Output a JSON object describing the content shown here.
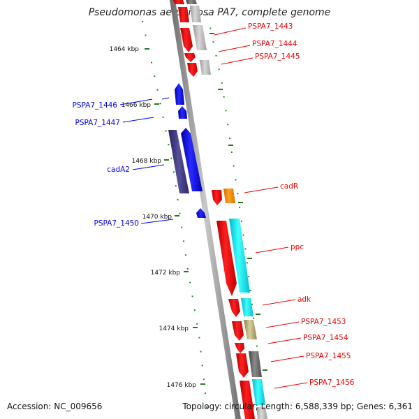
{
  "title": "Pseudomonas aeruginosa PA7, complete genome",
  "footer": {
    "accession": "Accession: NC_009656",
    "summary": "Topology: circular; Length: 6,588,339 bp; Genes: 6,361"
  },
  "ticks": [
    "1464 kbp",
    "1466 kbp",
    "1468 kbp",
    "1470 kbp",
    "1472 kbp",
    "1474 kbp",
    "1476 kbp"
  ],
  "genes_reverse": [
    {
      "name": "PSPA7_1446",
      "color": "#0000ee"
    },
    {
      "name": "PSPA7_1447",
      "color": "#0000ee"
    },
    {
      "name": "cadA2",
      "color": "#0000ee"
    },
    {
      "name": "PSPA7_1450",
      "color": "#0000ee"
    }
  ],
  "genes_forward": [
    {
      "name": "PSPA7_1443",
      "color": "#ee0000"
    },
    {
      "name": "PSPA7_1444",
      "color": "#ee0000"
    },
    {
      "name": "PSPA7_1445",
      "color": "#ee0000"
    },
    {
      "name": "cadR",
      "color": "#ee0000"
    },
    {
      "name": "ppc",
      "color": "#ee0000"
    },
    {
      "name": "adk",
      "color": "#ee0000"
    },
    {
      "name": "PSPA7_1453",
      "color": "#ee0000"
    },
    {
      "name": "PSPA7_1454",
      "color": "#ee0000"
    },
    {
      "name": "PSPA7_1455",
      "color": "#ee0000"
    },
    {
      "name": "PSPA7_1456",
      "color": "#ee0000"
    }
  ],
  "colors": {
    "forward_gene": "#ee0000",
    "reverse_gene": "#0000ee",
    "backbone": "#8c8c8c",
    "tick_mark": "#1f7a1f"
  }
}
